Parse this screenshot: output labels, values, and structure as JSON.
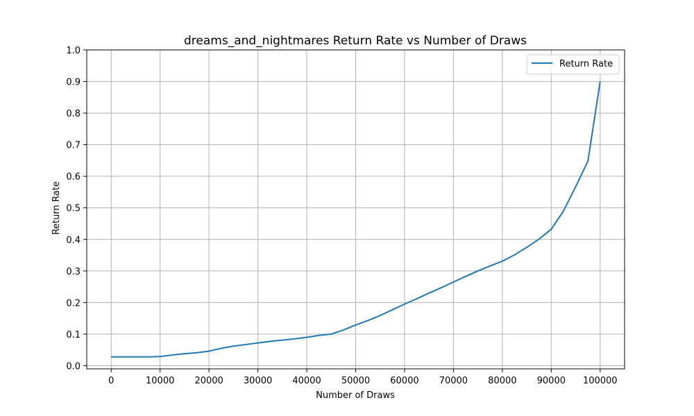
{
  "chart_data": {
    "type": "line",
    "title": "dreams_and_nightmares Return Rate vs Number of Draws",
    "xlabel": "Number of Draws",
    "ylabel": "Return Rate",
    "xlim": [
      -5000,
      105000
    ],
    "ylim": [
      -0.01,
      1.0
    ],
    "xticks": [
      0,
      10000,
      20000,
      30000,
      40000,
      50000,
      60000,
      70000,
      80000,
      90000,
      100000
    ],
    "yticks": [
      0.0,
      0.1,
      0.2,
      0.3,
      0.4,
      0.5,
      0.6,
      0.7,
      0.8,
      0.9,
      1.0
    ],
    "ytick_labels": [
      "0.0",
      "0.1",
      "0.2",
      "0.3",
      "0.4",
      "0.5",
      "0.6",
      "0.7",
      "0.8",
      "0.9",
      "1.0"
    ],
    "grid": true,
    "legend": "upper-right",
    "color": "#1f77b4",
    "series": [
      {
        "name": "Return Rate",
        "x": [
          0,
          2500,
          5000,
          7500,
          10000,
          12500,
          15000,
          17500,
          20000,
          22500,
          25000,
          27500,
          30000,
          32500,
          35000,
          37500,
          40000,
          42500,
          45000,
          47500,
          50000,
          52500,
          55000,
          57500,
          60000,
          62500,
          65000,
          67500,
          70000,
          72500,
          75000,
          77500,
          80000,
          82500,
          85000,
          87500,
          90000,
          92500,
          95000,
          97500,
          100000
        ],
        "y": [
          0.028,
          0.028,
          0.028,
          0.028,
          0.029,
          0.034,
          0.038,
          0.041,
          0.046,
          0.055,
          0.062,
          0.067,
          0.072,
          0.077,
          0.081,
          0.085,
          0.09,
          0.096,
          0.1,
          0.113,
          0.129,
          0.143,
          0.159,
          0.177,
          0.195,
          0.212,
          0.23,
          0.247,
          0.265,
          0.283,
          0.3,
          0.316,
          0.331,
          0.351,
          0.375,
          0.401,
          0.432,
          0.49,
          0.567,
          0.648,
          0.9
        ]
      }
    ]
  }
}
